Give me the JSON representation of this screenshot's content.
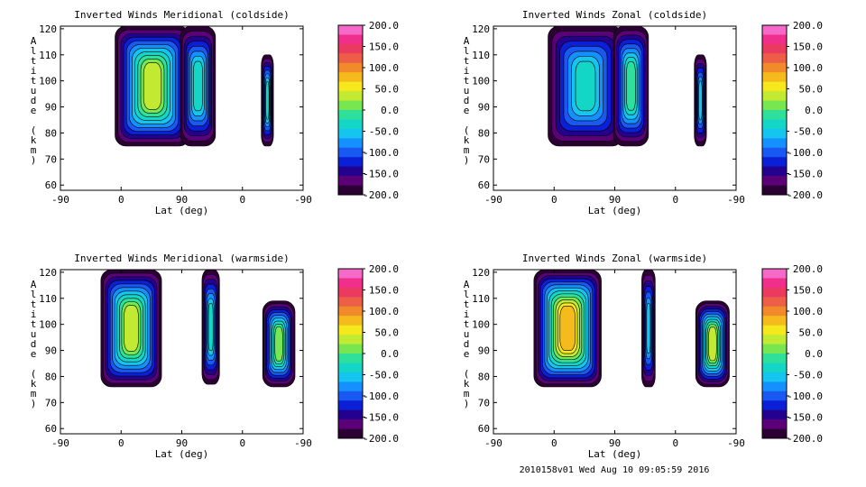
{
  "footer": "2010158v01 Wed Aug 10 09:05:59 2016",
  "chart_data": [
    {
      "type": "heatmap",
      "title": "Inverted Winds Meridional (coldside)",
      "xlabel": "Lat (deg)",
      "ylabel": "Altitude (km)",
      "xticks": [
        "-90",
        "0",
        "90",
        "0",
        "-90"
      ],
      "yticks": [
        "60",
        "70",
        "80",
        "90",
        "100",
        "110",
        "120"
      ],
      "ylim": [
        58,
        121
      ],
      "colorbar_ticks": [
        "200.0",
        "150.0",
        "100.0",
        "50.0",
        "0.0",
        "-50.0",
        "-100.0",
        "-150.0",
        "-200.0"
      ],
      "clim": [
        -200,
        200
      ],
      "blobs": [
        {
          "x0": -9,
          "x1": 102,
          "y0": 75,
          "y1": 121,
          "peak": 40
        },
        {
          "x0": 88,
          "x1": 140,
          "y0": 75,
          "y1": 121,
          "peak": -25
        },
        {
          "x0": 208,
          "x1": 226,
          "y0": 75,
          "y1": 110,
          "peak": -45
        }
      ]
    },
    {
      "type": "heatmap",
      "title": "Inverted Winds Zonal (coldside)",
      "xlabel": "Lat (deg)",
      "ylabel": "Altitude (km)",
      "xticks": [
        "-90",
        "0",
        "90",
        "0",
        "-90"
      ],
      "yticks": [
        "60",
        "70",
        "80",
        "90",
        "100",
        "110",
        "120"
      ],
      "ylim": [
        58,
        121
      ],
      "colorbar_ticks": [
        "200.0",
        "150.0",
        "100.0",
        "50.0",
        "0.0",
        "-50.0",
        "-100.0",
        "-150.0",
        "-200.0"
      ],
      "clim": [
        -200,
        200
      ],
      "blobs": [
        {
          "x0": -9,
          "x1": 102,
          "y0": 75,
          "y1": 121,
          "peak": -40
        },
        {
          "x0": 88,
          "x1": 140,
          "y0": 75,
          "y1": 121,
          "peak": -20
        },
        {
          "x0": 208,
          "x1": 226,
          "y0": 75,
          "y1": 110,
          "peak": -50
        }
      ]
    },
    {
      "type": "heatmap",
      "title": "Inverted Winds Meridional (warmside)",
      "xlabel": "Lat (deg)",
      "ylabel": "Altitude (km)",
      "xticks": [
        "-90",
        "0",
        "90",
        "0",
        "-90"
      ],
      "yticks": [
        "60",
        "70",
        "80",
        "90",
        "100",
        "110",
        "120"
      ],
      "ylim": [
        58,
        121
      ],
      "colorbar_ticks": [
        "200.0",
        "150.0",
        "100.0",
        "50.0",
        "0.0",
        "-50.0",
        "-100.0",
        "-150.0",
        "-200.0"
      ],
      "clim": [
        -200,
        200
      ],
      "blobs": [
        {
          "x0": -30,
          "x1": 60,
          "y0": 76,
          "y1": 121,
          "peak": 40
        },
        {
          "x0": 120,
          "x1": 146,
          "y0": 77,
          "y1": 121,
          "peak": -30
        },
        {
          "x0": 210,
          "x1": 258,
          "y0": 76,
          "y1": 109,
          "peak": 20
        }
      ]
    },
    {
      "type": "heatmap",
      "title": "Inverted Winds Zonal (warmside)",
      "xlabel": "Lat (deg)",
      "ylabel": "Altitude (km)",
      "xticks": [
        "-90",
        "0",
        "90",
        "0",
        "-90"
      ],
      "yticks": [
        "60",
        "70",
        "80",
        "90",
        "100",
        "110",
        "120"
      ],
      "ylim": [
        58,
        121
      ],
      "colorbar_ticks": [
        "200.0",
        "150.0",
        "100.0",
        "50.0",
        "0.0",
        "-50.0",
        "-100.0",
        "-150.0",
        "-200.0"
      ],
      "clim": [
        -200,
        200
      ],
      "blobs": [
        {
          "x0": -30,
          "x1": 70,
          "y0": 76,
          "y1": 121,
          "peak": 80
        },
        {
          "x0": 130,
          "x1": 150,
          "y0": 76,
          "y1": 121,
          "peak": -60
        },
        {
          "x0": 210,
          "x1": 260,
          "y0": 76,
          "y1": 109,
          "peak": 25
        }
      ]
    }
  ]
}
